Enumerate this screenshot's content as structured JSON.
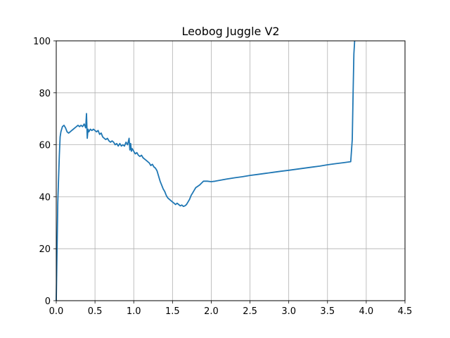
{
  "chart_data": {
    "type": "line",
    "title": "Leobog Juggle V2",
    "xlabel": "",
    "ylabel": "",
    "xlim": [
      0,
      4.5
    ],
    "ylim": [
      0,
      100
    ],
    "xticks": [
      0.0,
      0.5,
      1.0,
      1.5,
      2.0,
      2.5,
      3.0,
      3.5,
      4.0,
      4.5
    ],
    "xtick_labels": [
      "0.0",
      "0.5",
      "1.0",
      "1.5",
      "2.0",
      "2.5",
      "3.0",
      "3.5",
      "4.0",
      "4.5"
    ],
    "yticks": [
      0,
      20,
      40,
      60,
      80,
      100
    ],
    "ytick_labels": [
      "0",
      "20",
      "40",
      "60",
      "80",
      "100"
    ],
    "grid": true,
    "series": [
      {
        "color": "#1f77b4",
        "x": [
          0.0,
          0.02,
          0.04,
          0.05,
          0.06,
          0.08,
          0.1,
          0.12,
          0.14,
          0.16,
          0.18,
          0.2,
          0.22,
          0.24,
          0.26,
          0.28,
          0.3,
          0.32,
          0.34,
          0.36,
          0.38,
          0.39,
          0.4,
          0.41,
          0.42,
          0.44,
          0.46,
          0.48,
          0.5,
          0.52,
          0.54,
          0.56,
          0.58,
          0.6,
          0.62,
          0.64,
          0.66,
          0.68,
          0.7,
          0.72,
          0.74,
          0.76,
          0.78,
          0.8,
          0.82,
          0.84,
          0.86,
          0.88,
          0.9,
          0.92,
          0.94,
          0.95,
          0.96,
          0.97,
          0.98,
          1.0,
          1.02,
          1.04,
          1.06,
          1.08,
          1.1,
          1.12,
          1.14,
          1.16,
          1.18,
          1.2,
          1.22,
          1.24,
          1.26,
          1.28,
          1.3,
          1.32,
          1.34,
          1.36,
          1.38,
          1.4,
          1.42,
          1.44,
          1.46,
          1.48,
          1.5,
          1.52,
          1.54,
          1.56,
          1.58,
          1.6,
          1.62,
          1.64,
          1.66,
          1.68,
          1.7,
          1.72,
          1.74,
          1.76,
          1.78,
          1.8,
          1.85,
          1.9,
          1.95,
          2.0,
          2.05,
          2.1,
          2.2,
          2.3,
          2.4,
          2.5,
          2.6,
          2.7,
          2.8,
          2.9,
          3.0,
          3.1,
          3.2,
          3.3,
          3.4,
          3.5,
          3.6,
          3.7,
          3.8,
          3.82,
          3.83,
          3.84,
          3.85
        ],
        "y": [
          0,
          38,
          56,
          63,
          65,
          67,
          67.5,
          66.5,
          65,
          64.5,
          65,
          65.5,
          66,
          66.5,
          67,
          67.5,
          67,
          67.5,
          67,
          68,
          66.5,
          72,
          62.5,
          66,
          65,
          66,
          65.5,
          66,
          65.5,
          65,
          65.5,
          64,
          64.5,
          63,
          62.5,
          62,
          62.5,
          61.5,
          61,
          61.5,
          61,
          60,
          60.5,
          59.5,
          60.5,
          59.5,
          60,
          59.5,
          61,
          60,
          62.5,
          58,
          60.5,
          57.5,
          58.5,
          57.5,
          56.5,
          57,
          56,
          55.5,
          56,
          55,
          54.5,
          54,
          53.5,
          53,
          52,
          52.5,
          51.5,
          51,
          50,
          48,
          46,
          44.5,
          43,
          42,
          40.5,
          39.5,
          39,
          38.5,
          38,
          37.5,
          37,
          37.5,
          37,
          36.5,
          36.8,
          36.3,
          36.5,
          37,
          38,
          39,
          40.5,
          41.5,
          42.5,
          43.5,
          44.5,
          46,
          46,
          45.8,
          46,
          46.3,
          46.8,
          47.3,
          47.7,
          48.2,
          48.6,
          49,
          49.4,
          49.8,
          50.2,
          50.6,
          51,
          51.4,
          51.8,
          52.3,
          52.7,
          53.1,
          53.5,
          62,
          80,
          95,
          100
        ]
      }
    ]
  }
}
